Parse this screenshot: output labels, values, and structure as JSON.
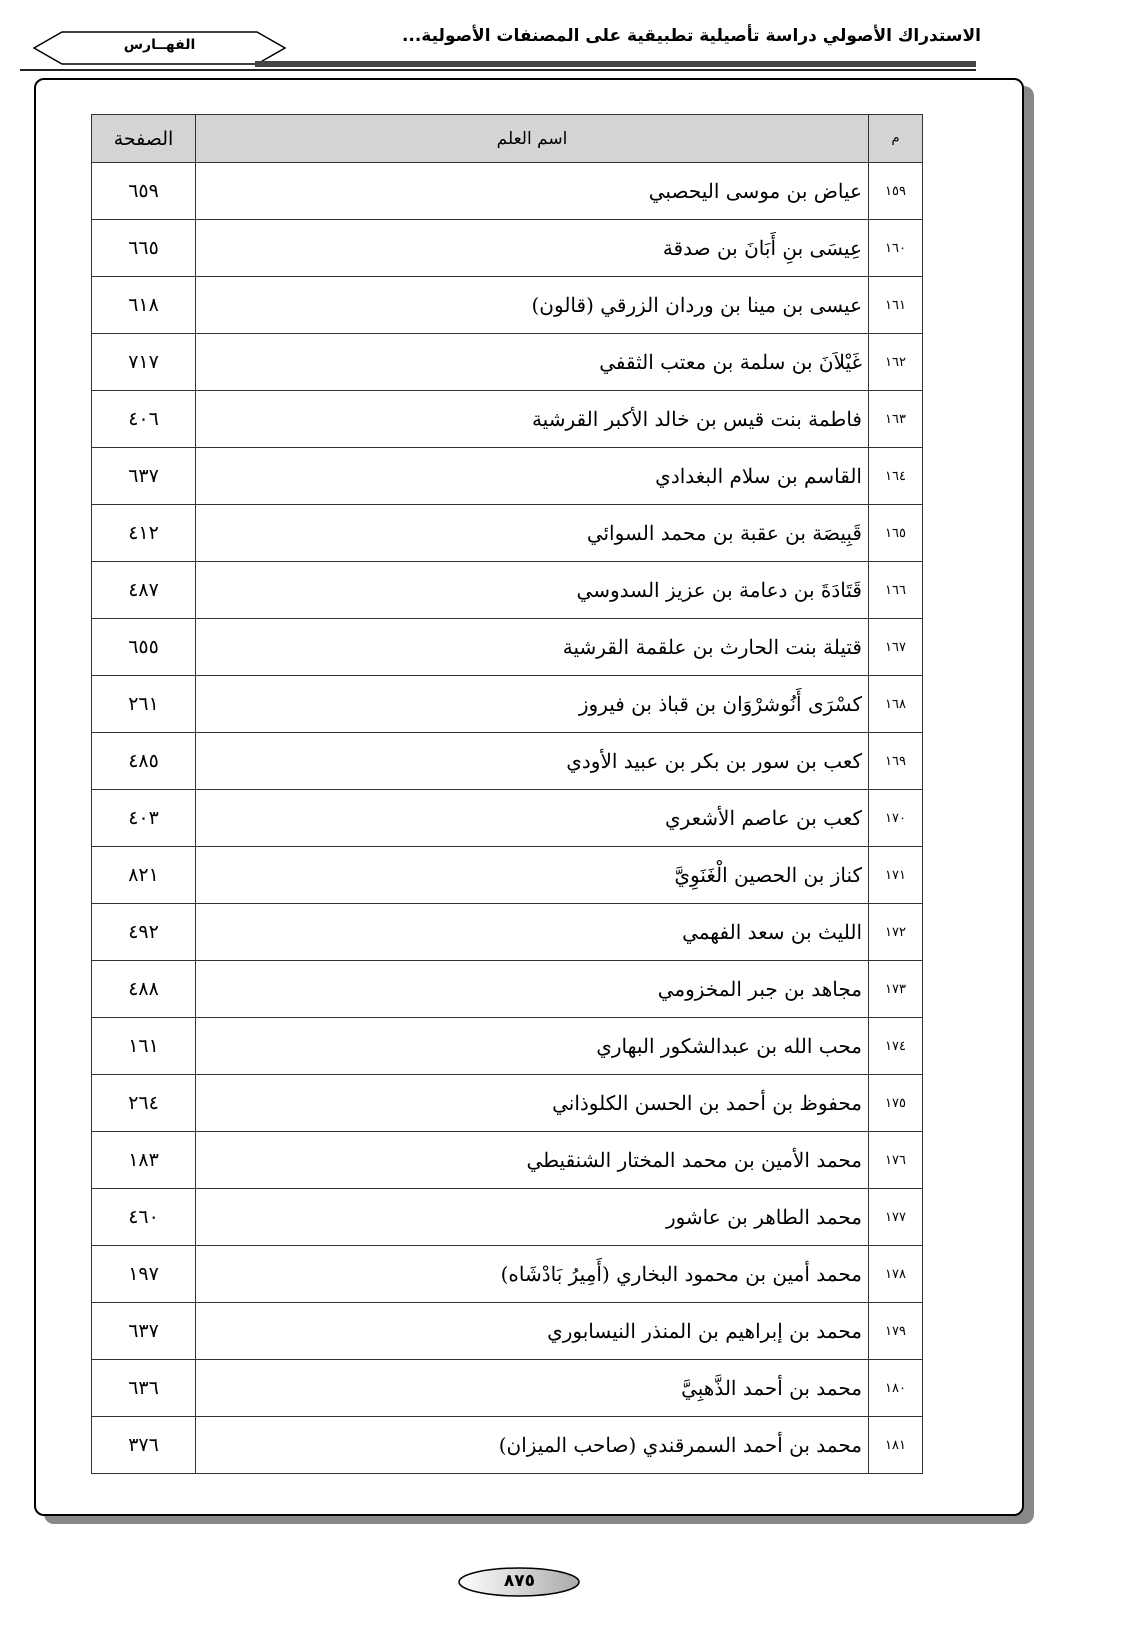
{
  "header": {
    "running_title": "الاستدراك الأصولي دراسة تأصيلية تطبيقية على المصنفات الأصولية...",
    "section": "الفهــارس"
  },
  "table": {
    "columns": {
      "num": "م",
      "name": "اسم العلم",
      "page": "الصفحة"
    },
    "rows": [
      {
        "num": "١٥٩",
        "name": "عياض بن موسى اليحصبي",
        "page": "٦٥٩"
      },
      {
        "num": "١٦٠",
        "name": "عِيسَى بنِ أَبَانَ بن صدقة",
        "page": "٦٦٥"
      },
      {
        "num": "١٦١",
        "name": "عيسى بن مينا بن وردان الزرقي (قالون)",
        "page": "٦١٨"
      },
      {
        "num": "١٦٢",
        "name": "غَيْلاَنَ بن سلمة بن معتب الثقفي",
        "page": "٧١٧"
      },
      {
        "num": "١٦٣",
        "name": "فاطمة بنت قيس بن خالد الأكبر القرشية",
        "page": "٤٠٦"
      },
      {
        "num": "١٦٤",
        "name": "القاسم بن سلام البغدادي",
        "page": "٦٣٧"
      },
      {
        "num": "١٦٥",
        "name": "قَبِيصَة بن عقبة بن محمد السوائي",
        "page": "٤١٢"
      },
      {
        "num": "١٦٦",
        "name": "قَتَادَةَ بن دعامة بن عزيز السدوسي",
        "page": "٤٨٧"
      },
      {
        "num": "١٦٧",
        "name": "قتيلة بنت الحارث بن علقمة القرشية",
        "page": "٦٥٥"
      },
      {
        "num": "١٦٨",
        "name": "كسْرَى أَنُوشرْوَان بن قباذ بن فيروز",
        "page": "٢٦١"
      },
      {
        "num": "١٦٩",
        "name": "كعب بن سور بن بكر بن عبيد الأودي",
        "page": "٤٨٥"
      },
      {
        "num": "١٧٠",
        "name": "كعب بن عاصم الأشعري",
        "page": "٤٠٣"
      },
      {
        "num": "١٧١",
        "name": "كناز بن الحصين الْغَنَوِيَّ",
        "page": "٨٢١"
      },
      {
        "num": "١٧٢",
        "name": "الليث بن سعد الفهمي",
        "page": "٤٩٢"
      },
      {
        "num": "١٧٣",
        "name": "مجاهد بن جبر المخزومي",
        "page": "٤٨٨"
      },
      {
        "num": "١٧٤",
        "name": "محب الله بن عبدالشكور البهاري",
        "page": "١٦١"
      },
      {
        "num": "١٧٥",
        "name": "محفوظ بن أحمد بن الحسن الكلوذاني",
        "page": "٢٦٤"
      },
      {
        "num": "١٧٦",
        "name": "محمد الأمين بن محمد المختار الشنقيطي",
        "page": "١٨٣"
      },
      {
        "num": "١٧٧",
        "name": "محمد الطاهر بن عاشور",
        "page": "٤٦٠"
      },
      {
        "num": "١٧٨",
        "name": "محمد أمين بن محمود البخاري (أَمِيرُ بَادْشَاه)",
        "page": "١٩٧"
      },
      {
        "num": "١٧٩",
        "name": "محمد بن إبراهيم بن المنذر النيسابوري",
        "page": "٦٣٧"
      },
      {
        "num": "١٨٠",
        "name": "محمد بن أحمد الذَّهبِيَّ",
        "page": "٦٣٦"
      },
      {
        "num": "١٨١",
        "name": "محمد بن أحمد السمرقندي (صاحب الميزان)",
        "page": "٣٧٦"
      }
    ]
  },
  "footer": {
    "page_number": "٨٧٥"
  }
}
